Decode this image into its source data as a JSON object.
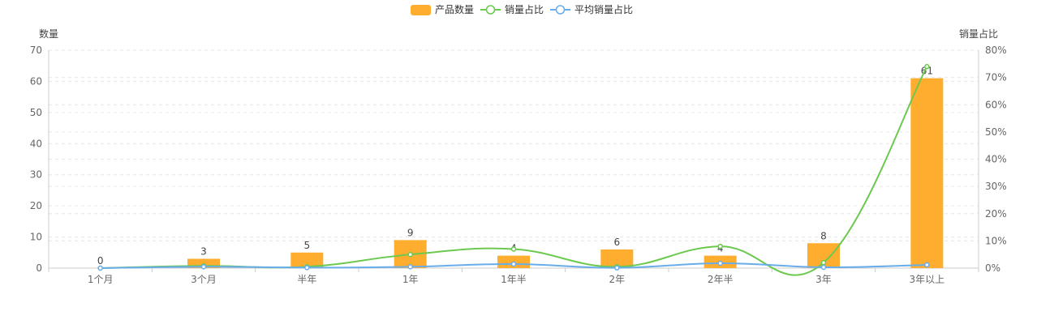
{
  "legend": {
    "items": [
      {
        "label": "产品数量",
        "type": "bar",
        "color": "#FFAD2E"
      },
      {
        "label": "销量占比",
        "type": "line",
        "color": "#6CC94F"
      },
      {
        "label": "平均销量占比",
        "type": "line",
        "color": "#68ADEA"
      }
    ]
  },
  "chart_data": {
    "type": "bar",
    "categories": [
      "1个月",
      "3个月",
      "半年",
      "1年",
      "1年半",
      "2年",
      "2年半",
      "3年",
      "3年以上"
    ],
    "series": [
      {
        "name": "产品数量",
        "type": "bar",
        "axis": "left",
        "values": [
          0,
          3,
          5,
          9,
          4,
          6,
          4,
          8,
          61
        ],
        "color": "#FFAD2E"
      },
      {
        "name": "销量占比",
        "type": "line",
        "axis": "right",
        "values": [
          0,
          0.8,
          0.5,
          5,
          7,
          0.5,
          8,
          2,
          74
        ],
        "color": "#6CC94F"
      },
      {
        "name": "平均销量占比",
        "type": "line",
        "axis": "right",
        "values": [
          0,
          0.5,
          0.2,
          0.5,
          1.5,
          0.1,
          1.8,
          0.3,
          1.2
        ],
        "color": "#68ADEA"
      }
    ],
    "left_axis": {
      "label": "数量",
      "min": 0,
      "max": 70,
      "ticks": [
        0,
        10,
        20,
        30,
        40,
        50,
        60,
        70
      ]
    },
    "right_axis": {
      "label": "销量占比",
      "min": 0,
      "max": 80,
      "ticks": [
        "0%",
        "10%",
        "20%",
        "30%",
        "40%",
        "50%",
        "60%",
        "70%",
        "80%"
      ]
    },
    "legend_position": "top-center",
    "grid": true
  },
  "colors": {
    "axis": "#CCCCCC",
    "grid": "#E6E6E6",
    "text": "#666666"
  }
}
